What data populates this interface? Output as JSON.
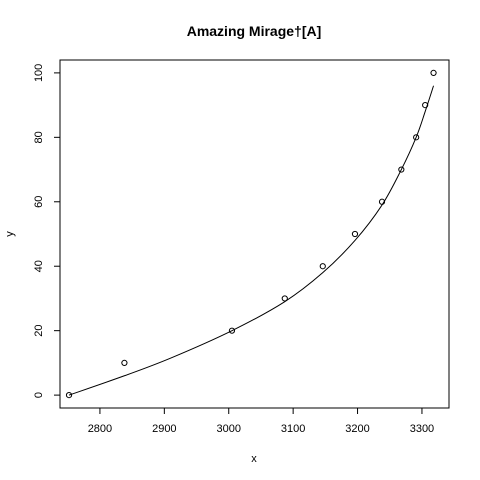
{
  "chart_data": {
    "type": "scatter",
    "title": "Amazing Mirage†[A]",
    "xlabel": "x",
    "ylabel": "y",
    "xlim": [
      2738,
      3342
    ],
    "ylim": [
      -4,
      104
    ],
    "x_ticks": [
      2800,
      2900,
      3000,
      3100,
      3200,
      3300
    ],
    "y_ticks": [
      0,
      20,
      40,
      60,
      80,
      100
    ],
    "grid": false,
    "points": [
      {
        "x": 2752,
        "y": 0
      },
      {
        "x": 2838,
        "y": 10
      },
      {
        "x": 3005,
        "y": 20
      },
      {
        "x": 3087,
        "y": 30
      },
      {
        "x": 3146,
        "y": 40
      },
      {
        "x": 3196,
        "y": 50
      },
      {
        "x": 3238,
        "y": 60
      },
      {
        "x": 3268,
        "y": 70
      },
      {
        "x": 3291,
        "y": 80
      },
      {
        "x": 3305,
        "y": 90
      },
      {
        "x": 3318,
        "y": 100
      }
    ],
    "fit_line": [
      {
        "x": 2752,
        "y": 0
      },
      {
        "x": 2838,
        "y": 6
      },
      {
        "x": 2910,
        "y": 11.5
      },
      {
        "x": 3005,
        "y": 20
      },
      {
        "x": 3087,
        "y": 29
      },
      {
        "x": 3146,
        "y": 38
      },
      {
        "x": 3196,
        "y": 48
      },
      {
        "x": 3238,
        "y": 59
      },
      {
        "x": 3268,
        "y": 70
      },
      {
        "x": 3291,
        "y": 80
      },
      {
        "x": 3305,
        "y": 88
      },
      {
        "x": 3318,
        "y": 96
      }
    ]
  }
}
